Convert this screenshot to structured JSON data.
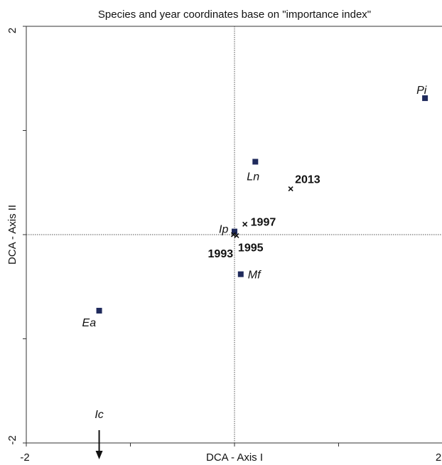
{
  "chart_data": {
    "type": "scatter",
    "title": "Species and year coordinates base on \"importance index\"",
    "xlabel": "DCA - Axis I",
    "ylabel": "DCA - Axis II",
    "xlim": [
      -2,
      2
    ],
    "ylim": [
      -2,
      2
    ],
    "x_ticks": [
      -2,
      2
    ],
    "y_ticks": [
      -2,
      2
    ],
    "zero_lines": true,
    "colors": {
      "species_marker": "#1f2a5c",
      "year_marker": "#111111",
      "frame": "#333333",
      "zero_line": "#555555",
      "arrow": "#111111"
    },
    "species": [
      {
        "label": "Pi",
        "x": 1.83,
        "y": 1.31
      },
      {
        "label": "Ln",
        "x": 0.2,
        "y": 0.7
      },
      {
        "label": "Ip",
        "x": 0.0,
        "y": 0.03
      },
      {
        "label": "Mf",
        "x": 0.06,
        "y": -0.38
      },
      {
        "label": "Ea",
        "x": -1.3,
        "y": -0.73
      }
    ],
    "years": [
      {
        "label": "2013",
        "x": 0.54,
        "y": 0.44
      },
      {
        "label": "1997",
        "x": 0.1,
        "y": 0.1
      },
      {
        "label": "1995",
        "x": 0.02,
        "y": -0.01
      },
      {
        "label": "1993",
        "x": -0.01,
        "y": 0.0
      }
    ],
    "off_chart": [
      {
        "label": "Ic",
        "x": -1.3,
        "direction": "down"
      }
    ]
  }
}
